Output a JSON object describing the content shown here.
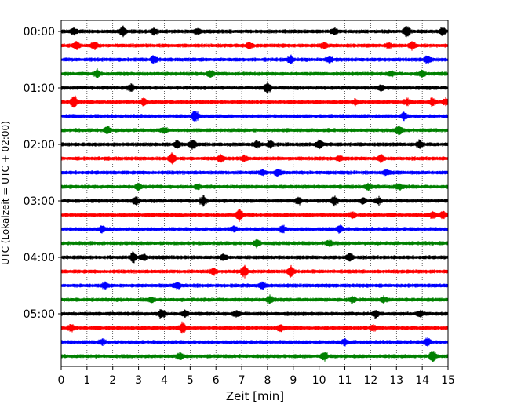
{
  "chart_data": {
    "type": "line",
    "title": "",
    "xlabel": "Zeit  [min]",
    "ylabel": "UTC (Lokalzeit = UTC + 02:00)",
    "xlim": [
      0,
      15
    ],
    "x_ticks": [
      "0",
      "1",
      "2",
      "3",
      "4",
      "5",
      "6",
      "7",
      "8",
      "9",
      "10",
      "11",
      "12",
      "13",
      "14",
      "15"
    ],
    "y_ticks": [
      "00:00",
      "01:00",
      "02:00",
      "03:00",
      "04:00",
      "05:00"
    ],
    "grid": "vertical dotted at each minute",
    "trace_interval_minutes": 15,
    "color_cycle": [
      "#000000",
      "#ff0000",
      "#0000ff",
      "#008000"
    ],
    "traces_count": 24,
    "bursts": [
      [
        [
          0.5,
          0.5
        ],
        [
          2.4,
          0.7
        ],
        [
          3.6,
          0.5
        ],
        [
          5.3,
          0.4
        ],
        [
          10.6,
          0.4
        ],
        [
          13.4,
          0.8
        ],
        [
          14.8,
          0.6
        ]
      ],
      [
        [
          0.6,
          0.6
        ],
        [
          1.3,
          0.5
        ],
        [
          7.3,
          0.4
        ],
        [
          10.2,
          0.4
        ],
        [
          12.7,
          0.4
        ],
        [
          13.6,
          0.5
        ]
      ],
      [
        [
          3.6,
          0.5
        ],
        [
          8.9,
          0.5
        ],
        [
          10.4,
          0.4
        ],
        [
          14.2,
          0.5
        ]
      ],
      [
        [
          1.4,
          0.5
        ],
        [
          5.8,
          0.5
        ],
        [
          12.8,
          0.4
        ],
        [
          14.0,
          0.5
        ]
      ],
      [
        [
          2.7,
          0.5
        ],
        [
          8.0,
          0.8
        ],
        [
          12.4,
          0.4
        ]
      ],
      [
        [
          0.5,
          0.9
        ],
        [
          3.2,
          0.5
        ],
        [
          11.4,
          0.4
        ],
        [
          13.4,
          0.5
        ],
        [
          14.4,
          0.6
        ],
        [
          14.9,
          0.5
        ]
      ],
      [
        [
          5.2,
          0.9
        ],
        [
          13.3,
          0.5
        ]
      ],
      [
        [
          1.8,
          0.5
        ],
        [
          4.0,
          0.4
        ],
        [
          13.1,
          0.7
        ]
      ],
      [
        [
          4.5,
          0.5
        ],
        [
          5.1,
          0.7
        ],
        [
          7.6,
          0.4
        ],
        [
          8.1,
          0.5
        ],
        [
          10.0,
          0.8
        ],
        [
          13.9,
          0.6
        ]
      ],
      [
        [
          4.3,
          0.8
        ],
        [
          6.2,
          0.5
        ],
        [
          7.1,
          0.4
        ],
        [
          10.8,
          0.4
        ],
        [
          12.4,
          0.5
        ]
      ],
      [
        [
          7.8,
          0.4
        ],
        [
          8.4,
          0.5
        ],
        [
          12.6,
          0.4
        ]
      ],
      [
        [
          3.0,
          0.5
        ],
        [
          5.3,
          0.4
        ],
        [
          11.9,
          0.4
        ],
        [
          13.1,
          0.4
        ]
      ],
      [
        [
          2.9,
          0.6
        ],
        [
          5.5,
          0.8
        ],
        [
          9.2,
          0.5
        ],
        [
          10.6,
          0.7
        ],
        [
          11.7,
          0.4
        ],
        [
          12.3,
          0.5
        ]
      ],
      [
        [
          6.9,
          0.9
        ],
        [
          11.3,
          0.4
        ],
        [
          14.4,
          0.5
        ],
        [
          14.8,
          0.5
        ]
      ],
      [
        [
          1.6,
          0.5
        ],
        [
          6.7,
          0.4
        ],
        [
          8.6,
          0.5
        ],
        [
          10.8,
          0.5
        ]
      ],
      [
        [
          7.6,
          0.6
        ],
        [
          10.4,
          0.4
        ]
      ],
      [
        [
          2.8,
          0.8
        ],
        [
          3.2,
          0.5
        ],
        [
          6.3,
          0.4
        ],
        [
          11.2,
          0.7
        ]
      ],
      [
        [
          5.9,
          0.5
        ],
        [
          7.1,
          0.9
        ],
        [
          8.9,
          0.8
        ]
      ],
      [
        [
          1.7,
          0.4
        ],
        [
          4.5,
          0.5
        ],
        [
          7.8,
          0.5
        ]
      ],
      [
        [
          3.5,
          0.4
        ],
        [
          8.1,
          0.6
        ],
        [
          11.3,
          0.5
        ],
        [
          12.5,
          0.4
        ]
      ],
      [
        [
          3.9,
          0.7
        ],
        [
          4.8,
          0.5
        ],
        [
          6.8,
          0.4
        ],
        [
          12.2,
          0.5
        ],
        [
          13.9,
          0.4
        ]
      ],
      [
        [
          0.4,
          0.5
        ],
        [
          4.7,
          0.8
        ],
        [
          8.5,
          0.5
        ],
        [
          12.1,
          0.4
        ]
      ],
      [
        [
          1.6,
          0.4
        ],
        [
          11.0,
          0.5
        ],
        [
          14.2,
          0.6
        ]
      ],
      [
        [
          4.6,
          0.5
        ],
        [
          10.2,
          0.6
        ],
        [
          14.4,
          0.8
        ]
      ]
    ]
  }
}
